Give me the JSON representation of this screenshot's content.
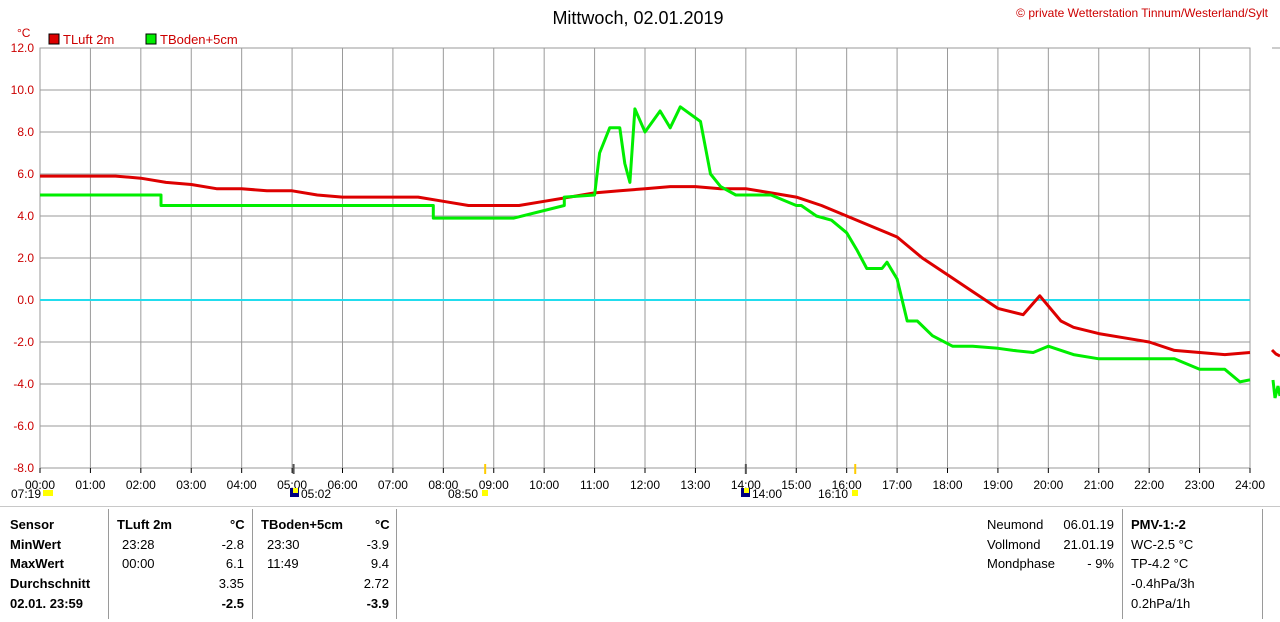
{
  "header": {
    "title": "Mittwoch, 02.01.2019",
    "copyright": "© private Wetterstation Tinnum/Westerland/Sylt"
  },
  "colors": {
    "tluft": "#dd0000",
    "tboden": "#00ee00",
    "zero_line": "#22ddee",
    "grid": "#9a9a9a"
  },
  "chart_data": {
    "type": "line",
    "ylabel": "°C",
    "ylim": [
      -8,
      12
    ],
    "yticks": [
      "12.0",
      "10.0",
      "8.0",
      "6.0",
      "4.0",
      "2.0",
      "0.0",
      "-2.0",
      "-4.0",
      "-6.0",
      "-8.0"
    ],
    "xlim": [
      0,
      24
    ],
    "xticks": [
      "00:00",
      "01:00",
      "02:00",
      "03:00",
      "04:00",
      "05:00",
      "06:00",
      "07:00",
      "08:00",
      "09:00",
      "10:00",
      "11:00",
      "12:00",
      "13:00",
      "14:00",
      "15:00",
      "16:00",
      "17:00",
      "18:00",
      "19:00",
      "20:00",
      "21:00",
      "22:00",
      "23:00",
      "24:00"
    ],
    "series": [
      {
        "name": "TLuft 2m",
        "color": "#dd0000",
        "x": [
          0,
          0.5,
          1,
          1.5,
          2,
          2.5,
          3,
          3.5,
          4,
          4.5,
          5,
          5.5,
          6,
          6.5,
          7,
          7.5,
          8,
          8.5,
          9,
          9.5,
          10,
          10.5,
          11,
          11.5,
          12,
          12.5,
          13,
          13.5,
          14,
          14.5,
          15,
          15.5,
          16,
          16.5,
          17,
          17.25,
          17.5,
          18,
          18.5,
          19,
          19.5,
          19.83,
          20.25,
          20.5,
          21,
          21.5,
          22,
          22.5,
          23,
          23.5,
          24
        ],
        "values": [
          5.9,
          5.9,
          5.9,
          5.9,
          5.8,
          5.6,
          5.5,
          5.3,
          5.3,
          5.2,
          5.2,
          5.0,
          4.9,
          4.9,
          4.9,
          4.9,
          4.7,
          4.5,
          4.5,
          4.5,
          4.7,
          4.9,
          5.1,
          5.2,
          5.3,
          5.4,
          5.4,
          5.3,
          5.3,
          5.1,
          4.9,
          4.5,
          4.0,
          3.5,
          3.0,
          2.5,
          2.0,
          1.2,
          0.4,
          -0.4,
          -0.7,
          0.2,
          -1.0,
          -1.3,
          -1.6,
          -1.8,
          -2.0,
          -2.4,
          -2.5,
          -2.6,
          -2.5
        ]
      },
      {
        "name": "TBoden+5cm",
        "color": "#00ee00",
        "x": [
          0,
          2.4,
          2.4,
          5.5,
          5.5,
          7.8,
          7.8,
          9.0,
          9.4,
          10.4,
          10.4,
          11.0,
          11.1,
          11.3,
          11.5,
          11.6,
          11.7,
          11.8,
          12.0,
          12.3,
          12.5,
          12.7,
          13.1,
          13.3,
          13.5,
          13.8,
          14.0,
          14.5,
          15.0,
          15.1,
          15.4,
          15.7,
          16.0,
          16.2,
          16.4,
          16.7,
          16.8,
          17.0,
          17.2,
          17.4,
          17.7,
          18.1,
          18.5,
          19.0,
          19.3,
          19.7,
          20.0,
          20.5,
          21.0,
          21.4,
          21.7,
          22.1,
          22.5,
          23.0,
          23.5,
          23.8,
          24
        ],
        "values": [
          5.0,
          5.0,
          4.5,
          4.5,
          4.5,
          4.5,
          3.9,
          3.9,
          3.9,
          4.5,
          4.9,
          5.0,
          7.0,
          8.2,
          8.2,
          6.5,
          5.6,
          9.1,
          8.0,
          9.0,
          8.2,
          9.2,
          8.5,
          6.0,
          5.4,
          5.0,
          5.0,
          5.0,
          4.5,
          4.5,
          4.0,
          3.8,
          3.2,
          2.4,
          1.5,
          1.5,
          1.8,
          1.0,
          -1.0,
          -1.0,
          -1.7,
          -2.2,
          -2.2,
          -2.3,
          -2.4,
          -2.5,
          -2.2,
          -2.6,
          -2.8,
          -2.8,
          -2.8,
          -2.8,
          -2.8,
          -3.3,
          -3.3,
          -3.9,
          -3.8
        ]
      }
    ],
    "events": [
      "07:19",
      "05:02",
      "08:50",
      "14:00",
      "16:10"
    ]
  },
  "stats": {
    "col_sensor": "Sensor",
    "col_tluft": "TLuft 2m",
    "col_tboden": "TBoden+5cm",
    "unit": "°C",
    "row_min": "MinWert",
    "row_max": "MaxWert",
    "row_avg": "Durchschnitt",
    "row_now": "02.01. 23:59",
    "tluft_min_time": "23:28",
    "tluft_min_val": "-2.8",
    "tluft_max_time": "00:00",
    "tluft_max_val": "6.1",
    "tluft_avg": "3.35",
    "tluft_now": "-2.5",
    "tboden_min_time": "23:30",
    "tboden_min_val": "-3.9",
    "tboden_max_time": "11:49",
    "tboden_max_val": "9.4",
    "tboden_avg": "2.72",
    "tboden_now": "-3.9"
  },
  "moon": {
    "neumond_label": "Neumond",
    "neumond_date": "06.01.19",
    "vollmond_label": "Vollmond",
    "vollmond_date": "21.01.19",
    "phase_label": "Mondphase",
    "phase_value": "- 9%"
  },
  "pmv": {
    "title": "PMV-1:-2",
    "wc": "WC-2.5 °C",
    "tp": "TP-4.2 °C",
    "p3h": "-0.4hPa/3h",
    "p1h": "0.2hPa/1h"
  }
}
